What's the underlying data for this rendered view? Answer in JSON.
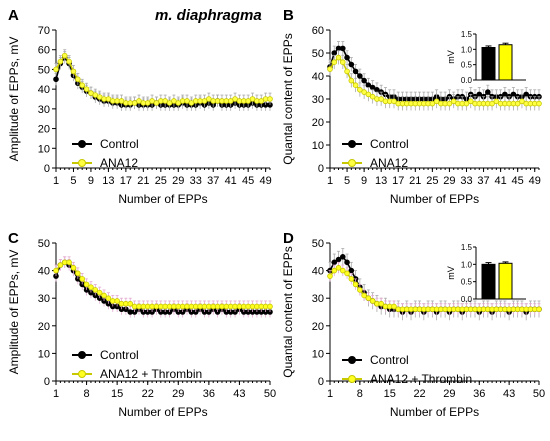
{
  "figure": {
    "title": "m. diaphragma"
  },
  "chart_data": [
    {
      "type": "line",
      "panel_label": "A",
      "xlabel": "Number of EPPs",
      "ylabel": "Amplitude of EPPs, mV",
      "xlim": [
        1,
        50
      ],
      "ylim": [
        0,
        70
      ],
      "xticks": [
        1,
        5,
        9,
        13,
        17,
        21,
        25,
        29,
        33,
        37,
        41,
        45,
        49
      ],
      "yticks": [
        0,
        10,
        20,
        30,
        40,
        50,
        60,
        70
      ],
      "series": [
        {
          "name": "Control",
          "color": "#000000",
          "marker_fill": "#000000",
          "error_color": "#aaaaaa",
          "values": [
            45,
            53,
            56,
            53,
            47,
            43,
            41,
            39,
            38,
            36,
            35,
            34,
            34,
            33,
            33,
            32,
            32,
            32,
            33,
            32,
            32,
            32,
            32,
            33,
            32,
            32,
            32,
            32,
            32,
            33,
            32,
            32,
            32,
            33,
            32,
            33,
            32,
            34,
            32,
            32,
            32,
            33,
            32,
            32,
            32,
            33,
            32,
            32,
            32,
            32
          ],
          "error": 3
        },
        {
          "name": "ANA12",
          "color": "#c8c800",
          "marker_fill": "#ffff44",
          "error_color": "#aaaaaa",
          "values": [
            50,
            54,
            57,
            54,
            49,
            45,
            42,
            40,
            38,
            37,
            36,
            35,
            35,
            34,
            34,
            34,
            33,
            33,
            33,
            34,
            33,
            33,
            34,
            33,
            34,
            34,
            33,
            34,
            33,
            34,
            34,
            33,
            34,
            34,
            34,
            35,
            34,
            34,
            34,
            34,
            34,
            35,
            34,
            34,
            34,
            35,
            34,
            34,
            35,
            35
          ],
          "error": 3
        }
      ],
      "legend": "bottom-left"
    },
    {
      "type": "line",
      "panel_label": "B",
      "xlabel": "Number of EPPs",
      "ylabel": "Quantal content of EPPs",
      "xlim": [
        1,
        50
      ],
      "ylim": [
        0,
        60
      ],
      "xticks": [
        1,
        5,
        9,
        13,
        17,
        21,
        25,
        29,
        33,
        37,
        41,
        45,
        49
      ],
      "yticks": [
        0,
        10,
        20,
        30,
        40,
        50,
        60
      ],
      "series": [
        {
          "name": "Control",
          "color": "#000000",
          "marker_fill": "#000000",
          "error_color": "#aaaaaa",
          "values": [
            44,
            50,
            52,
            52,
            48,
            45,
            42,
            40,
            38,
            36,
            35,
            34,
            33,
            32,
            31,
            31,
            30,
            30,
            30,
            30,
            30,
            30,
            30,
            30,
            30,
            31,
            30,
            30,
            31,
            30,
            31,
            31,
            30,
            32,
            31,
            32,
            31,
            33,
            31,
            31,
            31,
            32,
            31,
            32,
            31,
            31,
            32,
            31,
            31,
            31
          ],
          "error": 3
        },
        {
          "name": "ANA12",
          "color": "#c8c800",
          "marker_fill": "#ffff44",
          "error_color": "#aaaaaa",
          "values": [
            43,
            46,
            48,
            46,
            42,
            38,
            36,
            34,
            33,
            32,
            31,
            30,
            30,
            29,
            29,
            29,
            28,
            28,
            28,
            28,
            28,
            28,
            28,
            28,
            28,
            29,
            28,
            28,
            28,
            29,
            28,
            28,
            28,
            29,
            28,
            28,
            28,
            28,
            28,
            29,
            28,
            28,
            28,
            28,
            28,
            29,
            28,
            28,
            28,
            28
          ],
          "error": 3
        }
      ],
      "inset": {
        "ylabel": "mV",
        "ylim": [
          0,
          1.5
        ],
        "yticks": [
          0.0,
          0.5,
          1.0,
          1.5
        ],
        "ytick_labels": [
          "0.0",
          "0.5",
          "1.0",
          "1.5"
        ],
        "bars": [
          {
            "name": "Control",
            "value": 1.06,
            "error": 0.05,
            "color": "#000000"
          },
          {
            "name": "ANA12",
            "value": 1.15,
            "error": 0.05,
            "color": "#ffff00"
          }
        ]
      },
      "legend": "bottom-left"
    },
    {
      "type": "line",
      "panel_label": "C",
      "xlabel": "Number of EPPs",
      "ylabel": "Amplitude of EPPs, mV",
      "xlim": [
        1,
        50
      ],
      "ylim": [
        0,
        50
      ],
      "xticks": [
        1,
        8,
        15,
        22,
        29,
        36,
        43,
        50
      ],
      "yticks": [
        0,
        10,
        20,
        30,
        40,
        50
      ],
      "series": [
        {
          "name": "Control",
          "color": "#000000",
          "marker_fill": "#000000",
          "error_color": "#e3a9d0",
          "values": [
            38,
            42,
            43,
            42,
            40,
            37,
            35,
            33,
            32,
            31,
            30,
            29,
            28,
            27,
            27,
            26,
            26,
            25,
            25,
            26,
            25,
            25,
            25,
            26,
            25,
            25,
            25,
            26,
            25,
            25,
            26,
            25,
            25,
            26,
            25,
            25,
            26,
            25,
            26,
            25,
            25,
            25,
            26,
            25,
            25,
            25,
            25,
            25,
            25,
            25
          ],
          "error": 2
        },
        {
          "name": "ANA12 + Thrombin",
          "color": "#c8c800",
          "marker_fill": "#ffff22",
          "error_color": "#e3a9d0",
          "values": [
            40,
            42,
            43,
            43,
            41,
            39,
            37,
            35,
            34,
            33,
            32,
            31,
            30,
            29,
            29,
            28,
            28,
            28,
            27,
            27,
            27,
            27,
            27,
            27,
            27,
            27,
            27,
            27,
            27,
            27,
            27,
            27,
            27,
            27,
            27,
            27,
            27,
            27,
            27,
            27,
            27,
            27,
            27,
            27,
            27,
            27,
            27,
            27,
            27,
            27
          ],
          "error": 2
        }
      ],
      "legend": "bottom-left"
    },
    {
      "type": "line",
      "panel_label": "D",
      "xlabel": "Number of EPPs",
      "ylabel": "Quantal content of EPPs",
      "xlim": [
        1,
        50
      ],
      "ylim": [
        0,
        50
      ],
      "xticks": [
        1,
        8,
        15,
        22,
        29,
        36,
        43,
        50
      ],
      "yticks": [
        0,
        10,
        20,
        30,
        40,
        50
      ],
      "series": [
        {
          "name": "Control",
          "color": "#000000",
          "marker_fill": "#000000",
          "error_color": "#aaaaaa",
          "values": [
            40,
            43,
            44,
            45,
            43,
            40,
            37,
            34,
            32,
            30,
            29,
            28,
            27,
            27,
            26,
            26,
            26,
            25,
            26,
            25,
            26,
            26,
            25,
            26,
            26,
            25,
            26,
            26,
            25,
            26,
            26,
            25,
            26,
            26,
            26,
            25,
            26,
            26,
            25,
            26,
            26,
            26,
            25,
            26,
            26,
            26,
            25,
            26,
            26,
            26
          ],
          "error": 3
        },
        {
          "name": "ANA12 + Thrombin",
          "color": "#c8c800",
          "marker_fill": "#ffff22",
          "error_color": "#e3a9d0",
          "values": [
            38,
            40,
            41,
            40,
            39,
            37,
            35,
            33,
            31,
            30,
            29,
            28,
            28,
            27,
            27,
            27,
            26,
            26,
            26,
            26,
            26,
            26,
            26,
            26,
            26,
            26,
            26,
            26,
            26,
            26,
            26,
            26,
            26,
            26,
            26,
            26,
            26,
            26,
            26,
            26,
            26,
            26,
            26,
            26,
            26,
            26,
            26,
            26,
            26,
            26
          ],
          "error": 2
        }
      ],
      "inset": {
        "ylabel": "mV",
        "ylim": [
          0,
          1.5
        ],
        "yticks": [
          0.0,
          0.5,
          1.0,
          1.5
        ],
        "ytick_labels": [
          "0.0",
          "0.5",
          "1.0",
          "1.5"
        ],
        "bars": [
          {
            "name": "Control",
            "value": 1.0,
            "error": 0.05,
            "color": "#000000"
          },
          {
            "name": "ANA12 + Thrombin",
            "value": 1.03,
            "error": 0.04,
            "color": "#ffff00"
          }
        ]
      },
      "legend": "bottom-left"
    }
  ]
}
